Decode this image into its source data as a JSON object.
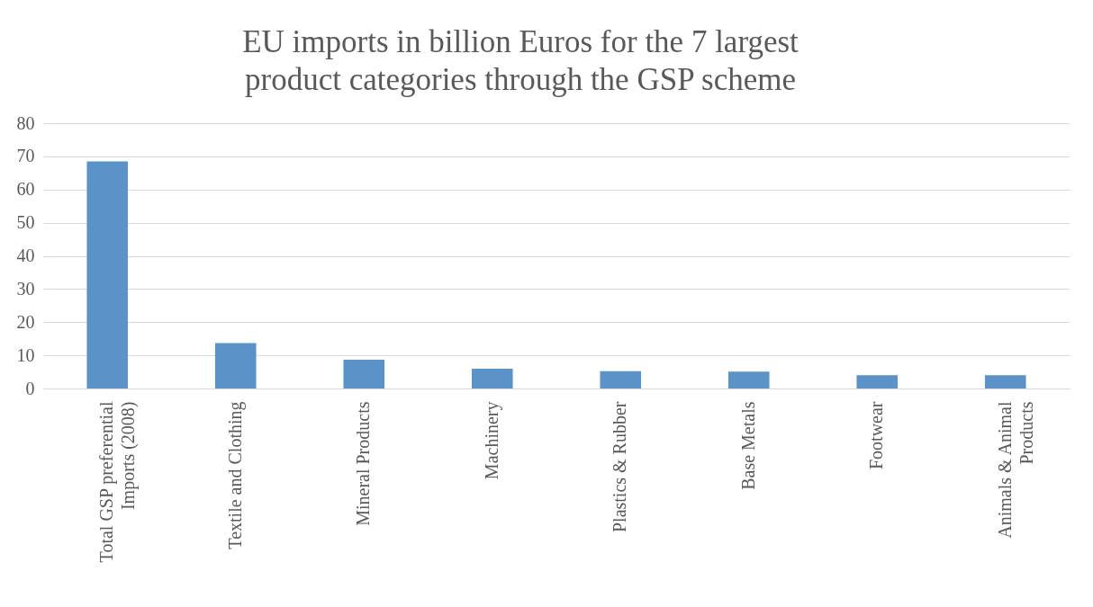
{
  "chart_data": {
    "type": "bar",
    "title": "EU imports in billion Euros for the 7 largest product categories through the GSP scheme",
    "categories": [
      "Total GSP preferential Imports (2008)",
      "Textile and Clothing",
      "Mineral Products",
      "Machinery",
      "Plastics & Rubber",
      "Base Metals",
      "Footwear",
      "Animals & Animal Products"
    ],
    "values": [
      68.5,
      13.7,
      8.7,
      6.0,
      5.2,
      5.1,
      4.0,
      4.0
    ],
    "color": "#5b93c9",
    "ylim": [
      0,
      80
    ],
    "yticks": [
      0,
      10,
      20,
      30,
      40,
      50,
      60,
      70,
      80
    ],
    "grid": "y"
  }
}
